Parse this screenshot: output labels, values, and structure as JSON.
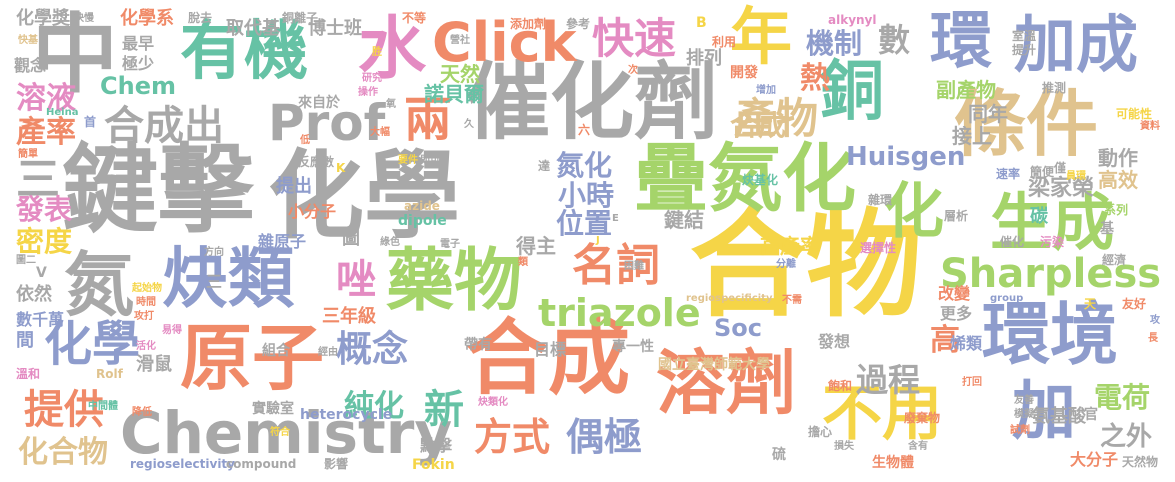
{
  "palette": {
    "gray": "#a8a8a8",
    "orange": "#f08a68",
    "green": "#a5d46a",
    "blue": "#8e9ccc",
    "yellow": "#f5d547",
    "pink": "#e48bc2",
    "teal": "#66c2a5",
    "tan": "#e0c38e"
  },
  "words": [
    {
      "text": "化學",
      "color": "#a8a8a8"
    },
    {
      "text": "合物",
      "color": "#f5d547"
    },
    {
      "text": "鍵擊",
      "color": "#a8a8a8"
    },
    {
      "text": "疊氮化",
      "color": "#a5d46a"
    },
    {
      "text": "催化劑",
      "color": "#a8a8a8"
    },
    {
      "text": "合成",
      "color": "#f08a68"
    },
    {
      "text": "環境",
      "color": "#8e9ccc"
    },
    {
      "text": "條件",
      "color": "#e0c38e"
    },
    {
      "text": "有機",
      "color": "#66c2a5"
    },
    {
      "text": "原子",
      "color": "#f08a68"
    },
    {
      "text": "溶劑",
      "color": "#f08a68"
    },
    {
      "text": "中",
      "color": "#a8a8a8"
    },
    {
      "text": "炔類",
      "color": "#8e9ccc"
    },
    {
      "text": "藥物",
      "color": "#a5d46a"
    },
    {
      "text": "Chemistry",
      "color": "#a8a8a8"
    },
    {
      "text": "加成",
      "color": "#8e9ccc"
    },
    {
      "text": "環",
      "color": "#8e9ccc"
    },
    {
      "text": "銅",
      "color": "#66c2a5"
    },
    {
      "text": "生成",
      "color": "#a5d46a"
    },
    {
      "text": "Click",
      "color": "#f08a68"
    },
    {
      "text": "年",
      "color": "#f5d547"
    },
    {
      "text": "氮",
      "color": "#a8a8a8"
    },
    {
      "text": "化學",
      "color": "#8e9ccc"
    },
    {
      "text": "加",
      "color": "#8e9ccc"
    },
    {
      "text": "不用",
      "color": "#f5d547"
    },
    {
      "text": "化",
      "color": "#a5d46a"
    },
    {
      "text": "水",
      "color": "#e48bc2"
    },
    {
      "text": "Prof",
      "color": "#a8a8a8"
    },
    {
      "text": "快速",
      "color": "#e48bc2"
    },
    {
      "text": "Sharpless",
      "color": "#a5d46a"
    },
    {
      "text": "名詞",
      "color": "#f08a68"
    },
    {
      "text": "triazole",
      "color": "#a5d46a"
    },
    {
      "text": "三",
      "color": "#a8a8a8"
    },
    {
      "text": "兩",
      "color": "#f08a68"
    },
    {
      "text": "產物",
      "color": "#e0c38e"
    },
    {
      "text": "概念",
      "color": "#8e9ccc"
    },
    {
      "text": "方式",
      "color": "#f08a68"
    },
    {
      "text": "偶極",
      "color": "#8e9ccc"
    },
    {
      "text": "提供",
      "color": "#f08a68"
    },
    {
      "text": "合成出",
      "color": "#a8a8a8"
    },
    {
      "text": "唑",
      "color": "#e48bc2"
    },
    {
      "text": "新",
      "color": "#66c2a5"
    },
    {
      "text": "機制",
      "color": "#8e9ccc"
    },
    {
      "text": "Huisgen",
      "color": "#8e9ccc"
    },
    {
      "text": "Soc",
      "color": "#8e9ccc"
    },
    {
      "text": "數",
      "color": "#a8a8a8"
    },
    {
      "text": "熱",
      "color": "#f08a68"
    },
    {
      "text": "過程",
      "color": "#a8a8a8"
    },
    {
      "text": "電荷",
      "color": "#a5d46a"
    },
    {
      "text": "溶液",
      "color": "#e48bc2"
    },
    {
      "text": "產率",
      "color": "#f08a68"
    },
    {
      "text": "發表",
      "color": "#e48bc2"
    },
    {
      "text": "密度",
      "color": "#f5d547"
    },
    {
      "text": "化合物",
      "color": "#e0c38e"
    },
    {
      "text": "純化",
      "color": "#66c2a5"
    },
    {
      "text": "氮化",
      "color": "#8e9ccc"
    },
    {
      "text": "小時",
      "color": "#8e9ccc"
    },
    {
      "text": "位置",
      "color": "#8e9ccc"
    },
    {
      "text": "Chem",
      "color": "#66c2a5"
    },
    {
      "text": "梁家榮",
      "color": "#a8a8a8"
    },
    {
      "text": "高效",
      "color": "#e0c38e"
    },
    {
      "text": "之外",
      "color": "#a8a8a8"
    },
    {
      "text": "高",
      "color": "#f08a68"
    },
    {
      "text": "碳",
      "color": "#66c2a5"
    },
    {
      "text": "副產物",
      "color": "#a5d46a"
    },
    {
      "text": "同年",
      "color": "#a8a8a8"
    },
    {
      "text": "接上",
      "color": "#a8a8a8"
    },
    {
      "text": "動作",
      "color": "#a8a8a8"
    },
    {
      "text": "天然",
      "color": "#a5d46a"
    },
    {
      "text": "諾貝爾",
      "color": "#66c2a5"
    },
    {
      "text": "排列",
      "color": "#a8a8a8"
    },
    {
      "text": "合成",
      "color": "#e0c38e"
    },
    {
      "text": "化學獎",
      "color": "#a8a8a8"
    },
    {
      "text": "化學系",
      "color": "#f08a68"
    },
    {
      "text": "取代基",
      "color": "#a8a8a8"
    },
    {
      "text": "博士班",
      "color": "#a8a8a8"
    },
    {
      "text": "最早",
      "color": "#a8a8a8"
    },
    {
      "text": "極少",
      "color": "#a8a8a8"
    },
    {
      "text": "觀念",
      "color": "#a8a8a8"
    },
    {
      "text": "來自於",
      "color": "#a8a8a8"
    },
    {
      "text": "提出",
      "color": "#8e9ccc"
    },
    {
      "text": "小分子",
      "color": "#f08a68"
    },
    {
      "text": "雜原子",
      "color": "#8e9ccc"
    },
    {
      "text": "圖",
      "color": "#a8a8a8"
    },
    {
      "text": "得主",
      "color": "#a8a8a8"
    },
    {
      "text": "鍵結",
      "color": "#a8a8a8"
    },
    {
      "text": "高產率",
      "color": "#f5d547"
    },
    {
      "text": "三年級",
      "color": "#f08a68"
    },
    {
      "text": "國立臺灣師範大學",
      "color": "#e0c38e"
    },
    {
      "text": "目標",
      "color": "#a8a8a8"
    },
    {
      "text": "改變",
      "color": "#f08a68"
    },
    {
      "text": "更多",
      "color": "#a8a8a8"
    },
    {
      "text": "烯類",
      "color": "#8e9ccc"
    },
    {
      "text": "氨基酸",
      "color": "#a8a8a8"
    },
    {
      "text": "大分子",
      "color": "#f08a68"
    },
    {
      "text": "點擊",
      "color": "#a8a8a8"
    },
    {
      "text": "依然",
      "color": "#a8a8a8"
    },
    {
      "text": "數千萬",
      "color": "#8e9ccc"
    },
    {
      "text": "間",
      "color": "#8e9ccc"
    },
    {
      "text": "滑鼠",
      "color": "#a8a8a8"
    },
    {
      "text": "組合",
      "color": "#a8a8a8"
    },
    {
      "text": "實驗室",
      "color": "#a8a8a8"
    },
    {
      "text": "heterocycle",
      "color": "#8e9ccc"
    },
    {
      "text": "發想",
      "color": "#a8a8a8"
    },
    {
      "text": "專一性",
      "color": "#a8a8a8"
    },
    {
      "text": "帶有",
      "color": "#a8a8a8"
    },
    {
      "text": "regioselectivity",
      "color": "#8e9ccc"
    },
    {
      "text": "compound",
      "color": "#a8a8a8"
    },
    {
      "text": "影響",
      "color": "#a8a8a8"
    },
    {
      "text": "Fokin",
      "color": "#f5d547"
    },
    {
      "text": "生物體",
      "color": "#f08a68"
    },
    {
      "text": "天然物",
      "color": "#a8a8a8"
    },
    {
      "text": "三",
      "color": "#a8a8a8"
    },
    {
      "text": "Rolf",
      "color": "#e0c38e"
    },
    {
      "text": "dipole",
      "color": "#66c2a5"
    },
    {
      "text": "alkynyl",
      "color": "#e48bc2"
    },
    {
      "text": "azide",
      "color": "#e0c38e"
    },
    {
      "text": "Heina",
      "color": "#66c2a5"
    },
    {
      "text": "regiospecificity",
      "color": "#e0c38e"
    },
    {
      "text": "group",
      "color": "#8e9ccc"
    },
    {
      "text": "炔基化",
      "color": "#66c2a5"
    },
    {
      "text": "反應數",
      "color": "#a8a8a8"
    },
    {
      "text": "增加",
      "color": "#8e9ccc"
    },
    {
      "text": "開發",
      "color": "#f08a68"
    },
    {
      "text": "利用",
      "color": "#f08a68"
    },
    {
      "text": "添加劑",
      "color": "#f08a68"
    },
    {
      "text": "不等",
      "color": "#f08a68"
    },
    {
      "text": "參考",
      "color": "#a8a8a8"
    },
    {
      "text": "銅離子",
      "color": "#a8a8a8"
    },
    {
      "text": "脫去",
      "color": "#a8a8a8"
    },
    {
      "text": "快慢",
      "color": "#a8a8a8"
    },
    {
      "text": "快基",
      "color": "#e0c38e"
    },
    {
      "text": "室溫",
      "color": "#a8a8a8"
    },
    {
      "text": "提升",
      "color": "#a8a8a8"
    },
    {
      "text": "推測",
      "color": "#a8a8a8"
    },
    {
      "text": "可能性",
      "color": "#f5d547"
    },
    {
      "text": "資料",
      "color": "#f08a68"
    },
    {
      "text": "簡便",
      "color": "#a8a8a8"
    },
    {
      "text": "僅",
      "color": "#a8a8a8"
    },
    {
      "text": "員環",
      "color": "#f5d547"
    },
    {
      "text": "速率",
      "color": "#8e9ccc"
    },
    {
      "text": "雜環",
      "color": "#a8a8a8"
    },
    {
      "text": "層析",
      "color": "#a8a8a8"
    },
    {
      "text": "系列",
      "color": "#a5d46a"
    },
    {
      "text": "基",
      "color": "#a8a8a8"
    },
    {
      "text": "經濟",
      "color": "#a8a8a8"
    },
    {
      "text": "友好",
      "color": "#f08a68"
    },
    {
      "text": "攻",
      "color": "#8e9ccc"
    },
    {
      "text": "選擇性",
      "color": "#e48bc2"
    },
    {
      "text": "催化",
      "color": "#a8a8a8"
    },
    {
      "text": "污染",
      "color": "#e48bc2"
    },
    {
      "text": "分離",
      "color": "#8e9ccc"
    },
    {
      "text": "不需",
      "color": "#f08a68"
    },
    {
      "text": "天",
      "color": "#f5d547"
    },
    {
      "text": "長",
      "color": "#f08a68"
    },
    {
      "text": "打回",
      "color": "#f08a68"
    },
    {
      "text": "飽和",
      "color": "#f08a68"
    },
    {
      "text": "友善",
      "color": "#a8a8a8"
    },
    {
      "text": "模擬",
      "color": "#a8a8a8"
    },
    {
      "text": "試劑",
      "color": "#f08a68"
    },
    {
      "text": "廢棄物",
      "color": "#f08a68"
    },
    {
      "text": "官",
      "color": "#a8a8a8"
    },
    {
      "text": "擔心",
      "color": "#a8a8a8"
    },
    {
      "text": "含有",
      "color": "#a8a8a8"
    },
    {
      "text": "損失",
      "color": "#a8a8a8"
    },
    {
      "text": "硫",
      "color": "#a8a8a8"
    },
    {
      "text": "炔類化",
      "color": "#e48bc2"
    },
    {
      "text": "經由",
      "color": "#a8a8a8"
    },
    {
      "text": "中間體",
      "color": "#66c2a5"
    },
    {
      "text": "降低",
      "color": "#f08a68"
    },
    {
      "text": "符合",
      "color": "#f5d547"
    },
    {
      "text": "活化",
      "color": "#e48bc2"
    },
    {
      "text": "易得",
      "color": "#e48bc2"
    },
    {
      "text": "攻打",
      "color": "#f08a68"
    },
    {
      "text": "時間",
      "color": "#f08a68"
    },
    {
      "text": "起始物",
      "color": "#f5d547"
    },
    {
      "text": "溫和",
      "color": "#e48bc2"
    },
    {
      "text": "圖二",
      "color": "#a8a8a8"
    },
    {
      "text": "V",
      "color": "#a8a8a8"
    },
    {
      "text": "方向",
      "color": "#a8a8a8"
    },
    {
      "text": "綠色",
      "color": "#a8a8a8"
    },
    {
      "text": "電子",
      "color": "#a8a8a8"
    },
    {
      "text": "類",
      "color": "#f08a68"
    },
    {
      "text": "困難",
      "color": "#a8a8a8"
    },
    {
      "text": "要件",
      "color": "#f5d547"
    },
    {
      "text": "即可",
      "color": "#a8a8a8"
    },
    {
      "text": "K",
      "color": "#f5d547"
    },
    {
      "text": "達",
      "color": "#a8a8a8"
    },
    {
      "text": "大幅",
      "color": "#f08a68"
    },
    {
      "text": "低",
      "color": "#f08a68"
    },
    {
      "text": "久",
      "color": "#a8a8a8"
    },
    {
      "text": "六",
      "color": "#f08a68"
    },
    {
      "text": "操作",
      "color": "#e48bc2"
    },
    {
      "text": "研究",
      "color": "#e48bc2"
    },
    {
      "text": "氧",
      "color": "#a8a8a8"
    },
    {
      "text": "首",
      "color": "#8e9ccc"
    },
    {
      "text": "簡單",
      "color": "#f08a68"
    },
    {
      "text": "營社",
      "color": "#a8a8a8"
    },
    {
      "text": "次",
      "color": "#f08a68"
    },
    {
      "text": "B",
      "color": "#f5d547"
    },
    {
      "text": "胜",
      "color": "#f5d547"
    },
    {
      "text": "E",
      "color": "#a8a8a8"
    },
    {
      "text": "J",
      "color": "#f5d547"
    }
  ]
}
